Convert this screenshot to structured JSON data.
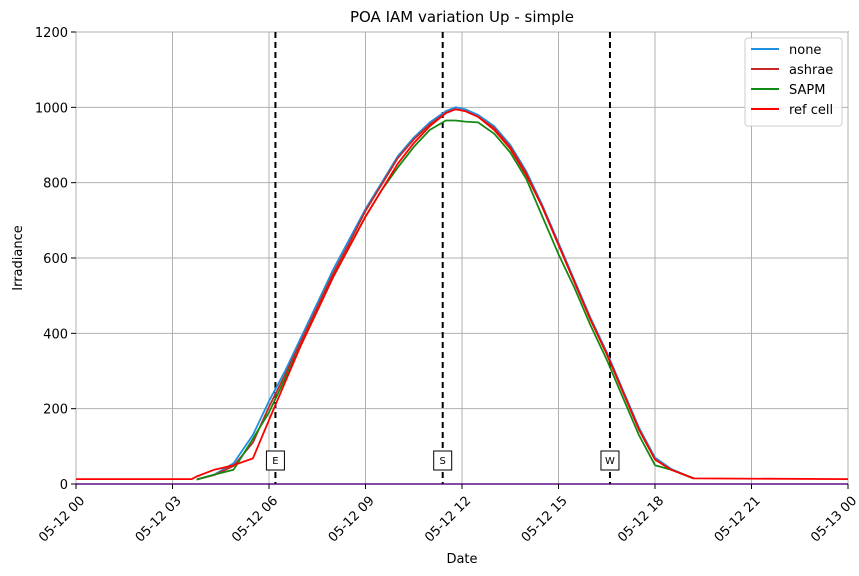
{
  "chart_data": {
    "type": "line",
    "title": "POA IAM variation Up - simple",
    "xlabel": "Date",
    "ylabel": "Irradiance",
    "x_ticks": [
      "05-12 00",
      "05-12 03",
      "05-12 06",
      "05-12 09",
      "05-12 12",
      "05-12 15",
      "05-12 18",
      "05-12 21",
      "05-13 00"
    ],
    "y_ticks": [
      "0",
      "200",
      "400",
      "600",
      "800",
      "1000",
      "1200"
    ],
    "xlim": [
      "2024-05-12 00:00",
      "2024-05-13 00:00"
    ],
    "ylim": [
      0,
      1200
    ],
    "grid": true,
    "legend_position": "top-right",
    "series": [
      {
        "name": "none",
        "color": "#1f8fe0",
        "x": [
          "03:36",
          "04:12",
          "04:48",
          "05:24",
          "06:00",
          "06:36",
          "07:12",
          "07:48",
          "08:24",
          "09:00",
          "09:36",
          "10:12",
          "10:48",
          "11:24",
          "11:48",
          "12:12",
          "12:48",
          "13:24",
          "14:00",
          "14:36",
          "15:12",
          "15:48",
          "16:24",
          "17:00",
          "17:36",
          "18:00",
          "18:36",
          "19:12",
          "19:48",
          "21:00",
          "24:00"
        ],
        "y": [
          15,
          25,
          45,
          120,
          210,
          290,
          380,
          460,
          545,
          625,
          700,
          760,
          800,
          840,
          860,
          880,
          880,
          840,
          780,
          700,
          610,
          520,
          440,
          360,
          280,
          200,
          120,
          55,
          20,
          0,
          0
        ],
        "dx": [
          0,
          0,
          0,
          0,
          0,
          0,
          0,
          0,
          0,
          0,
          0,
          0,
          0,
          0,
          0,
          0,
          0,
          0,
          0,
          0,
          0,
          0,
          0,
          0,
          0,
          0,
          0,
          0,
          0,
          0,
          0
        ]
      }
    ],
    "vertical_markers": [
      {
        "x": "06:12",
        "label": "E"
      },
      {
        "x": "11:24",
        "label": "S"
      },
      {
        "x": "16:36",
        "label": "W"
      }
    ],
    "series_list": [
      {
        "name": "none",
        "color": "#1f8fe0",
        "x_hours": [
          3.75,
          4.3,
          4.9,
          5.5,
          6.0,
          6.5,
          7.0,
          7.5,
          8.0,
          8.5,
          9.0,
          9.5,
          10.0,
          10.5,
          11.0,
          11.5,
          11.8,
          12.1,
          12.5,
          13.0,
          13.5,
          14.0,
          14.5,
          15.0,
          15.5,
          16.0,
          16.5,
          17.0,
          17.5,
          18.0,
          18.5,
          19.2
        ],
        "y": [
          12,
          25,
          55,
          130,
          220,
          300,
          390,
          480,
          570,
          650,
          730,
          800,
          870,
          920,
          960,
          990,
          1000,
          995,
          980,
          950,
          900,
          830,
          740,
          640,
          540,
          440,
          350,
          250,
          150,
          70,
          40,
          15
        ]
      },
      {
        "name": "ashrae",
        "color": "#c62828",
        "x_hours": [
          3.75,
          4.3,
          4.9,
          5.5,
          6.0,
          6.5,
          7.0,
          7.5,
          8.0,
          8.5,
          9.0,
          9.5,
          10.0,
          10.5,
          11.0,
          11.5,
          11.8,
          12.1,
          12.5,
          13.0,
          13.5,
          14.0,
          14.5,
          15.0,
          15.5,
          16.0,
          16.5,
          17.0,
          17.5,
          18.0,
          18.5,
          19.2
        ],
        "y": [
          12,
          24,
          48,
          110,
          205,
          290,
          380,
          470,
          560,
          640,
          725,
          795,
          865,
          915,
          955,
          985,
          995,
          990,
          975,
          945,
          895,
          825,
          735,
          635,
          535,
          435,
          345,
          245,
          145,
          65,
          38,
          15
        ]
      },
      {
        "name": "SAPM",
        "color": "#138a13",
        "x_hours": [
          3.75,
          4.3,
          4.9,
          5.5,
          6.0,
          6.5,
          7.0,
          7.5,
          8.0,
          8.5,
          9.0,
          9.5,
          10.0,
          10.5,
          11.0,
          11.5,
          11.8,
          12.1,
          12.5,
          13.0,
          13.5,
          14.0,
          14.5,
          15.0,
          15.5,
          16.0,
          16.5,
          17.0,
          17.5,
          18.0,
          18.5,
          19.2
        ],
        "y": [
          12,
          25,
          38,
          120,
          190,
          280,
          370,
          460,
          550,
          630,
          710,
          780,
          840,
          895,
          940,
          965,
          965,
          962,
          960,
          930,
          880,
          810,
          710,
          610,
          520,
          420,
          330,
          230,
          130,
          50,
          38,
          15
        ]
      },
      {
        "name": "ref cell",
        "color": "#ff0000",
        "x_hours": [
          0,
          3.6,
          3.75,
          4.3,
          4.9,
          5.5,
          6.0,
          6.5,
          7.0,
          7.5,
          8.0,
          8.5,
          9.0,
          9.5,
          10.0,
          10.5,
          11.0,
          11.5,
          11.8,
          12.1,
          12.5,
          13.0,
          13.5,
          14.0,
          14.5,
          15.0,
          15.5,
          16.0,
          16.5,
          17.0,
          17.5,
          18.0,
          18.5,
          19.2,
          24
        ],
        "y": [
          13,
          13,
          20,
          38,
          50,
          68,
          170,
          270,
          370,
          460,
          550,
          630,
          710,
          780,
          850,
          905,
          950,
          985,
          995,
          990,
          975,
          940,
          890,
          820,
          735,
          635,
          535,
          435,
          345,
          245,
          145,
          65,
          38,
          15,
          13
        ]
      }
    ],
    "legend_entries": [
      {
        "label": "none",
        "color": "#1f8fe0"
      },
      {
        "label": "ashrae",
        "color": "#c62828"
      },
      {
        "label": "SAPM",
        "color": "#138a13"
      },
      {
        "label": "ref cell",
        "color": "#ff0000"
      }
    ]
  }
}
